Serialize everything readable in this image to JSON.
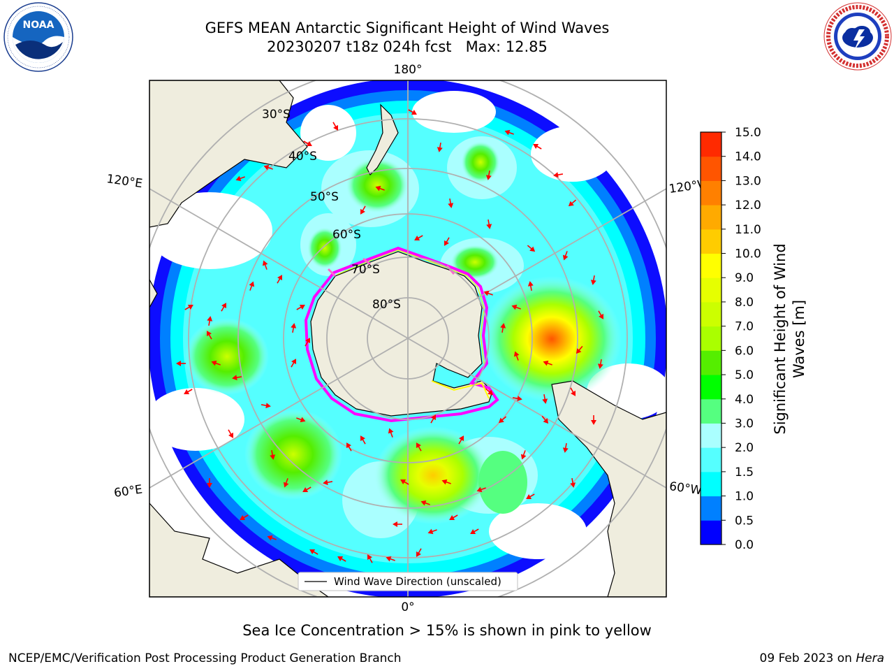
{
  "header": {
    "title_line1": "GEFS MEAN Antarctic Significant Height of Wind Waves",
    "title_line2": "20230207 t18z 024h fcst   Max: 12.85"
  },
  "logos": {
    "left": {
      "icon": "noaa-logo",
      "text": "NOAA",
      "ring_text": "NATIONAL OCEANIC AND ATMOSPHERIC ADMINISTRATION · U.S. DEPARTMENT OF COMMERCE"
    },
    "right": {
      "icon": "nws-logo",
      "ring_text": "NATIONAL WEATHER SERVICE"
    }
  },
  "map": {
    "projection": "south-polar-stereographic",
    "longitude_labels": {
      "top": "180°",
      "bottom": "0°",
      "upper_left": "120°E",
      "lower_left": "60°E",
      "upper_right": "120°W",
      "lower_right": "60°W"
    },
    "latitude_labels": [
      "30°S",
      "40°S",
      "50°S",
      "60°S",
      "70°S",
      "80°S"
    ],
    "legend": {
      "line_label": "Wind Wave Direction (unscaled)"
    },
    "colors": {
      "land": "#efedde",
      "coastline": "#000000",
      "grid": "#b0b0b0",
      "arrow": "#ff0000",
      "sea_ice": [
        "#ff00ff",
        "#ff66cc",
        "#ffff00"
      ]
    }
  },
  "colorbar": {
    "label": "Significant Height of Wind Waves [m]",
    "ticks": [
      "0.0",
      "0.5",
      "1.0",
      "1.5",
      "2.0",
      "3.0",
      "4.0",
      "5.0",
      "6.0",
      "7.0",
      "8.0",
      "9.0",
      "10.0",
      "11.0",
      "12.0",
      "13.0",
      "14.0",
      "15.0"
    ],
    "colors": [
      "#0000ff",
      "#0080ff",
      "#00ffff",
      "#55ffff",
      "#aaffff",
      "#55ff80",
      "#00ff00",
      "#55ee00",
      "#aaff00",
      "#ccff00",
      "#e6ff00",
      "#ffff00",
      "#ffcc00",
      "#ffaa00",
      "#ff8000",
      "#ff5500",
      "#ff2a00",
      "#ff0000"
    ]
  },
  "footer": {
    "caption": "Sea Ice Concentration > 15% is shown in pink to yellow",
    "credit": "NCEP/EMC/Verification Post Processing Product Generation Branch",
    "date": "09 Feb 2023 on ",
    "system": "Hera"
  }
}
